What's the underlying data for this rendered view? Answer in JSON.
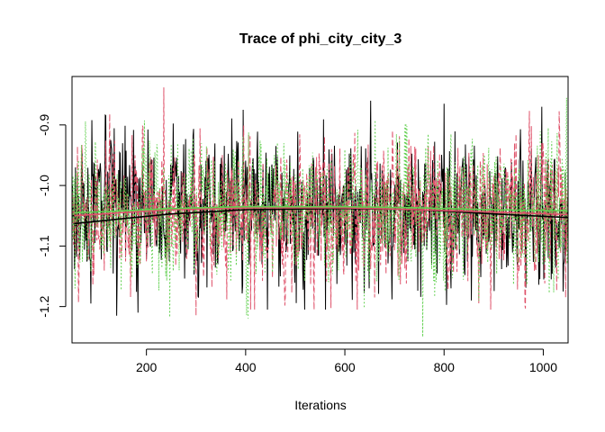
{
  "chart_data": {
    "type": "line",
    "title": "Trace of phi_city_city_3",
    "xlabel": "Iterations",
    "ylabel": "",
    "xlim": [
      50,
      1050
    ],
    "ylim": [
      -1.26,
      -0.82
    ],
    "x_ticks": [
      200,
      400,
      600,
      800,
      1000
    ],
    "y_ticks": [
      -1.2,
      -1.1,
      -1.0,
      -0.9
    ],
    "x_tick_labels": [
      "200",
      "400",
      "600",
      "800",
      "1000"
    ],
    "y_tick_labels": [
      "-1.2",
      "-1.1",
      "-1.0",
      "-0.9"
    ],
    "grid": false,
    "legend": "none",
    "n_iterations": 1000,
    "iteration_start": 51,
    "series": [
      {
        "color": "#000000",
        "style": "solid",
        "mean": -1.04,
        "sd": 0.055,
        "min": -1.215,
        "max": -0.86,
        "extremes": [
          [
            88,
            -1.195
          ],
          [
            140,
            -1.215
          ],
          [
            183,
            -1.21
          ],
          [
            395,
            -0.875
          ],
          [
            652,
            -0.86
          ],
          [
            800,
            -0.865
          ],
          [
            855,
            -1.19
          ],
          [
            1040,
            -1.175
          ]
        ],
        "smooth": [
          [
            55,
            -1.063
          ],
          [
            150,
            -1.055
          ],
          [
            250,
            -1.047
          ],
          [
            400,
            -1.04
          ],
          [
            600,
            -1.038
          ],
          [
            750,
            -1.04
          ],
          [
            900,
            -1.047
          ],
          [
            1050,
            -1.053
          ]
        ]
      },
      {
        "color": "#DF536B",
        "style": "dashed",
        "mean": -1.04,
        "sd": 0.055,
        "min": -1.215,
        "max": -0.838,
        "extremes": [
          [
            235,
            -0.838
          ],
          [
            300,
            -1.215
          ],
          [
            410,
            -1.205
          ],
          [
            538,
            -1.205
          ],
          [
            660,
            -1.185
          ],
          [
            1045,
            -1.185
          ]
        ],
        "smooth": [
          [
            55,
            -1.05
          ],
          [
            150,
            -1.045
          ],
          [
            250,
            -1.04
          ],
          [
            400,
            -1.037
          ],
          [
            600,
            -1.037
          ],
          [
            750,
            -1.04
          ],
          [
            900,
            -1.044
          ],
          [
            1050,
            -1.048
          ]
        ]
      },
      {
        "color": "#61D04F",
        "style": "dotted",
        "mean": -1.04,
        "sd": 0.055,
        "min": -1.25,
        "max": -0.855,
        "extremes": [
          [
            56,
            -1.17
          ],
          [
            405,
            -1.22
          ],
          [
            757,
            -1.25
          ],
          [
            1047,
            -0.855
          ]
        ],
        "smooth": [
          [
            55,
            -1.045
          ],
          [
            150,
            -1.042
          ],
          [
            250,
            -1.038
          ],
          [
            400,
            -1.035
          ],
          [
            600,
            -1.035
          ],
          [
            750,
            -1.037
          ],
          [
            900,
            -1.04
          ],
          [
            1050,
            -1.042
          ]
        ]
      }
    ]
  }
}
